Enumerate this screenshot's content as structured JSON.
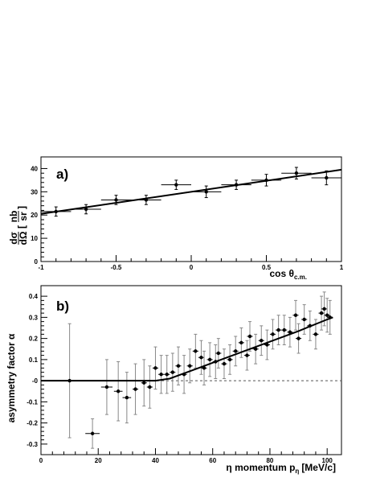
{
  "chart_data": [
    {
      "type": "scatter",
      "panel_label": "a)",
      "xlabel_main": "cos θ",
      "xlabel_sub": "c.m.",
      "ylabel": {
        "left_num": "dσ",
        "left_den": "dΩ",
        "unit_num": "nb",
        "unit_den": "sr"
      },
      "xlim": [
        -1,
        1
      ],
      "ylim": [
        0,
        45
      ],
      "x_ticks": [
        {
          "value": -1,
          "label": "-1"
        },
        {
          "value": -0.5,
          "label": "-0.5"
        },
        {
          "value": 0,
          "label": "0"
        },
        {
          "value": 0.5,
          "label": "0.5"
        },
        {
          "value": 1,
          "label": "1"
        }
      ],
      "y_ticks": [
        {
          "value": 0,
          "label": "0"
        },
        {
          "value": 10,
          "label": "10"
        },
        {
          "value": 20,
          "label": "20"
        },
        {
          "value": 30,
          "label": "30"
        },
        {
          "value": 40,
          "label": "40"
        }
      ],
      "points": [
        {
          "x": -0.9,
          "y": 21.5,
          "xerr": 0.1,
          "yerr": 2.0
        },
        {
          "x": -0.7,
          "y": 22.5,
          "xerr": 0.1,
          "yerr": 2.0
        },
        {
          "x": -0.5,
          "y": 26.5,
          "xerr": 0.1,
          "yerr": 2.0
        },
        {
          "x": -0.3,
          "y": 26.5,
          "xerr": 0.1,
          "yerr": 2.0
        },
        {
          "x": -0.1,
          "y": 33.0,
          "xerr": 0.1,
          "yerr": 2.0
        },
        {
          "x": 0.1,
          "y": 30.0,
          "xerr": 0.1,
          "yerr": 2.5
        },
        {
          "x": 0.3,
          "y": 33.0,
          "xerr": 0.1,
          "yerr": 2.0
        },
        {
          "x": 0.5,
          "y": 35.0,
          "xerr": 0.1,
          "yerr": 2.5
        },
        {
          "x": 0.7,
          "y": 38.0,
          "xerr": 0.1,
          "yerr": 2.5
        },
        {
          "x": 0.9,
          "y": 36.0,
          "xerr": 0.1,
          "yerr": 3.0
        }
      ],
      "fit_line": {
        "x": [
          -1,
          1
        ],
        "y": [
          20.5,
          39.5
        ]
      }
    },
    {
      "type": "scatter",
      "panel_label": "b)",
      "xlabel_main": "η momentum p",
      "xlabel_sub": "η",
      "xlabel_unit": "[MeV/c]",
      "ylabel": "asymmetry factor α",
      "xlim": [
        0,
        105
      ],
      "ylim": [
        -0.35,
        0.45
      ],
      "x_ticks": [
        {
          "value": 0,
          "label": "0"
        },
        {
          "value": 20,
          "label": "20"
        },
        {
          "value": 40,
          "label": "40"
        },
        {
          "value": 60,
          "label": "60"
        },
        {
          "value": 80,
          "label": "80"
        },
        {
          "value": 100,
          "label": "100"
        }
      ],
      "y_ticks": [
        {
          "value": -0.3,
          "label": "-0.3"
        },
        {
          "value": -0.2,
          "label": "-0.2"
        },
        {
          "value": -0.1,
          "label": "-0.1"
        },
        {
          "value": 0,
          "label": "-0"
        },
        {
          "value": 0.1,
          "label": "0.1"
        },
        {
          "value": 0.2,
          "label": "0.2"
        },
        {
          "value": 0.3,
          "label": "0.3"
        },
        {
          "value": 0.4,
          "label": "0.4"
        }
      ],
      "points": [
        {
          "x": 10.0,
          "y": 0.0,
          "xerr": 5.0,
          "yerr": 0.27
        },
        {
          "x": 18.0,
          "y": -0.25,
          "xerr": 2.5,
          "yerr": 0.07
        },
        {
          "x": 23.0,
          "y": -0.03,
          "xerr": 2.0,
          "yerr": 0.13
        },
        {
          "x": 27.0,
          "y": -0.05,
          "xerr": 1.5,
          "yerr": 0.14
        },
        {
          "x": 30.0,
          "y": -0.08,
          "xerr": 1.5,
          "yerr": 0.12
        },
        {
          "x": 33.0,
          "y": -0.04,
          "xerr": 1.0,
          "yerr": 0.12
        },
        {
          "x": 36.0,
          "y": -0.01,
          "xerr": 1.0,
          "yerr": 0.11
        },
        {
          "x": 38.0,
          "y": -0.03,
          "xerr": 1.0,
          "yerr": 0.1
        },
        {
          "x": 40.0,
          "y": 0.06,
          "xerr": 1.0,
          "yerr": 0.1
        },
        {
          "x": 42.0,
          "y": 0.03,
          "xerr": 1.0,
          "yerr": 0.09
        },
        {
          "x": 44.0,
          "y": 0.03,
          "xerr": 1.0,
          "yerr": 0.09
        },
        {
          "x": 46.0,
          "y": 0.04,
          "xerr": 1.0,
          "yerr": 0.09
        },
        {
          "x": 48.0,
          "y": 0.07,
          "xerr": 1.0,
          "yerr": 0.09
        },
        {
          "x": 50.0,
          "y": 0.03,
          "xerr": 1.0,
          "yerr": 0.09
        },
        {
          "x": 52.0,
          "y": 0.07,
          "xerr": 1.0,
          "yerr": 0.08
        },
        {
          "x": 54.0,
          "y": 0.14,
          "xerr": 1.0,
          "yerr": 0.08
        },
        {
          "x": 56.0,
          "y": 0.11,
          "xerr": 1.0,
          "yerr": 0.08
        },
        {
          "x": 57.0,
          "y": 0.06,
          "xerr": 1.0,
          "yerr": 0.08
        },
        {
          "x": 59.0,
          "y": 0.1,
          "xerr": 1.0,
          "yerr": 0.08
        },
        {
          "x": 61.0,
          "y": 0.09,
          "xerr": 1.0,
          "yerr": 0.08
        },
        {
          "x": 62.0,
          "y": 0.13,
          "xerr": 1.0,
          "yerr": 0.07
        },
        {
          "x": 64.0,
          "y": 0.08,
          "xerr": 1.0,
          "yerr": 0.07
        },
        {
          "x": 66.0,
          "y": 0.1,
          "xerr": 1.0,
          "yerr": 0.07
        },
        {
          "x": 68.0,
          "y": 0.14,
          "xerr": 1.0,
          "yerr": 0.07
        },
        {
          "x": 70.0,
          "y": 0.18,
          "xerr": 1.0,
          "yerr": 0.07
        },
        {
          "x": 72.0,
          "y": 0.12,
          "xerr": 1.0,
          "yerr": 0.07
        },
        {
          "x": 73.0,
          "y": 0.21,
          "xerr": 1.0,
          "yerr": 0.07
        },
        {
          "x": 75.0,
          "y": 0.15,
          "xerr": 1.0,
          "yerr": 0.07
        },
        {
          "x": 77.0,
          "y": 0.19,
          "xerr": 1.0,
          "yerr": 0.07
        },
        {
          "x": 79.0,
          "y": 0.17,
          "xerr": 1.0,
          "yerr": 0.07
        },
        {
          "x": 81.0,
          "y": 0.22,
          "xerr": 1.0,
          "yerr": 0.07
        },
        {
          "x": 83.0,
          "y": 0.24,
          "xerr": 1.0,
          "yerr": 0.07
        },
        {
          "x": 85.0,
          "y": 0.24,
          "xerr": 1.0,
          "yerr": 0.07
        },
        {
          "x": 87.0,
          "y": 0.23,
          "xerr": 1.0,
          "yerr": 0.07
        },
        {
          "x": 89.0,
          "y": 0.31,
          "xerr": 1.0,
          "yerr": 0.07
        },
        {
          "x": 90.0,
          "y": 0.2,
          "xerr": 1.0,
          "yerr": 0.07
        },
        {
          "x": 92.0,
          "y": 0.29,
          "xerr": 1.0,
          "yerr": 0.07
        },
        {
          "x": 94.0,
          "y": 0.26,
          "xerr": 1.0,
          "yerr": 0.07
        },
        {
          "x": 96.0,
          "y": 0.22,
          "xerr": 1.0,
          "yerr": 0.07
        },
        {
          "x": 98.0,
          "y": 0.32,
          "xerr": 1.0,
          "yerr": 0.08
        },
        {
          "x": 99.0,
          "y": 0.34,
          "xerr": 1.0,
          "yerr": 0.08
        },
        {
          "x": 100.0,
          "y": 0.31,
          "xerr": 1.0,
          "yerr": 0.08
        },
        {
          "x": 101.0,
          "y": 0.3,
          "xerr": 1.0,
          "yerr": 0.08
        }
      ],
      "fit_curve": {
        "x": [
          0,
          40,
          45,
          50,
          55,
          60,
          70,
          80,
          90,
          100,
          102
        ],
        "y": [
          0,
          0,
          0.01,
          0.035,
          0.06,
          0.085,
          0.135,
          0.185,
          0.235,
          0.29,
          0.3
        ]
      },
      "zero_line": "dashed"
    }
  ]
}
